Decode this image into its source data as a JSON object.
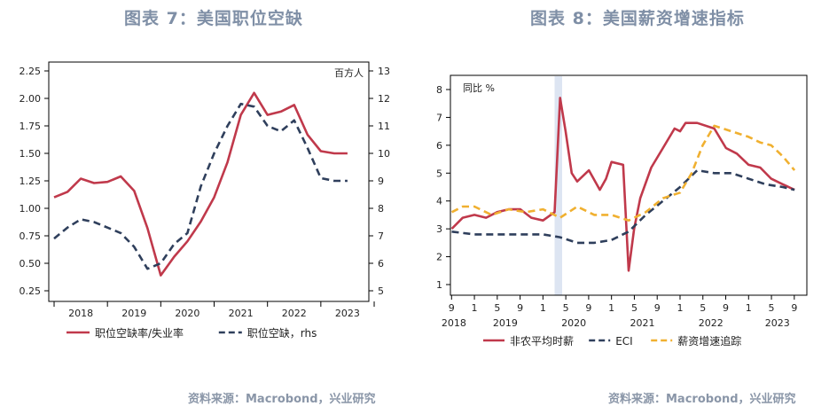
{
  "panels": {
    "left": {
      "title": "图表 7：美国职位空缺",
      "source": "资料来源：Macrobond，兴业研究"
    },
    "right": {
      "title": "图表 8：美国薪资增速指标",
      "source": "资料来源：Macrobond，兴业研究"
    }
  },
  "colors": {
    "red": "#c0394b",
    "navy": "#2f3f5c",
    "gold": "#f0b030",
    "band": "#dde5f2"
  },
  "chart_data": [
    {
      "type": "line",
      "unit_label": "百方人",
      "x_tick_labels": [
        "2018",
        "2019",
        "2020",
        "2021",
        "2022",
        "2023"
      ],
      "y_left": {
        "range": [
          0.25,
          2.25
        ],
        "ticks": [
          "0.25",
          "0.50",
          "0.75",
          "1.00",
          "1.25",
          "1.50",
          "1.75",
          "2.00",
          "2.25"
        ]
      },
      "y_right": {
        "range": [
          5,
          13
        ],
        "ticks": [
          "5",
          "6",
          "7",
          "8",
          "9",
          "10",
          "11",
          "12",
          "13"
        ]
      },
      "series": [
        {
          "name": "职位空缺率/失业率",
          "axis": "left",
          "style": "solid",
          "x": [
            2018.0,
            2018.25,
            2018.5,
            2018.75,
            2019.0,
            2019.25,
            2019.5,
            2019.75,
            2020.0,
            2020.25,
            2020.5,
            2020.75,
            2021.0,
            2021.25,
            2021.5,
            2021.75,
            2022.0,
            2022.25,
            2022.5,
            2022.75,
            2023.0,
            2023.25,
            2023.5
          ],
          "y": [
            1.1,
            1.15,
            1.27,
            1.23,
            1.24,
            1.29,
            1.16,
            0.82,
            0.39,
            0.56,
            0.7,
            0.88,
            1.1,
            1.42,
            1.85,
            2.05,
            1.85,
            1.88,
            1.94,
            1.67,
            1.52,
            1.5,
            1.5
          ]
        },
        {
          "name": "职位空缺，rhs",
          "axis": "right",
          "style": "dashed",
          "x": [
            2018.0,
            2018.25,
            2018.5,
            2018.75,
            2019.0,
            2019.25,
            2019.5,
            2019.75,
            2020.0,
            2020.25,
            2020.5,
            2020.75,
            2021.0,
            2021.25,
            2021.5,
            2021.75,
            2022.0,
            2022.25,
            2022.5,
            2022.75,
            2023.0,
            2023.25,
            2023.5
          ],
          "y": [
            6.9,
            7.3,
            7.6,
            7.5,
            7.3,
            7.1,
            6.6,
            5.8,
            6.0,
            6.7,
            7.1,
            8.8,
            10.0,
            11.0,
            11.8,
            11.7,
            11.0,
            10.8,
            11.2,
            10.2,
            9.1,
            9.0,
            9.0
          ]
        }
      ]
    },
    {
      "type": "line",
      "unit_label": "同比 %",
      "shaded_band": [
        2020.17,
        2020.28
      ],
      "x_month_labels": [
        "9",
        "1",
        "5",
        "9",
        "1",
        "5",
        "9",
        "1",
        "5",
        "9",
        "1",
        "5",
        "9",
        "1",
        "5",
        "9"
      ],
      "x_year_labels": [
        "2018",
        "2019",
        "2020",
        "2021",
        "2022",
        "2023"
      ],
      "y": {
        "range": [
          1,
          8
        ],
        "ticks": [
          "1",
          "2",
          "3",
          "4",
          "5",
          "6",
          "7",
          "8"
        ]
      },
      "series": [
        {
          "name": "非农平均时薪",
          "style": "solid",
          "x": [
            2018.67,
            2018.83,
            2019.0,
            2019.17,
            2019.33,
            2019.5,
            2019.67,
            2019.83,
            2020.0,
            2020.17,
            2020.25,
            2020.33,
            2020.42,
            2020.5,
            2020.67,
            2020.83,
            2020.92,
            2021.0,
            2021.17,
            2021.25,
            2021.33,
            2021.42,
            2021.58,
            2021.75,
            2021.92,
            2022.0,
            2022.08,
            2022.25,
            2022.5,
            2022.67,
            2022.83,
            2023.0,
            2023.17,
            2023.33,
            2023.5,
            2023.67
          ],
          "y": [
            3.0,
            3.4,
            3.5,
            3.4,
            3.6,
            3.7,
            3.7,
            3.4,
            3.3,
            3.6,
            7.7,
            6.5,
            5.0,
            4.7,
            5.1,
            4.4,
            4.8,
            5.4,
            5.3,
            1.5,
            3.0,
            4.1,
            5.2,
            5.9,
            6.6,
            6.5,
            6.8,
            6.8,
            6.6,
            5.9,
            5.7,
            5.3,
            5.2,
            4.8,
            4.6,
            4.4
          ]
        },
        {
          "name": "ECI",
          "style": "dashed",
          "x": [
            2018.67,
            2019.0,
            2019.5,
            2020.0,
            2020.25,
            2020.5,
            2020.75,
            2021.0,
            2021.25,
            2021.5,
            2021.75,
            2022.0,
            2022.25,
            2022.5,
            2022.75,
            2023.0,
            2023.25,
            2023.5,
            2023.67
          ],
          "y": [
            2.9,
            2.8,
            2.8,
            2.8,
            2.7,
            2.5,
            2.5,
            2.6,
            2.9,
            3.5,
            4.0,
            4.5,
            5.1,
            5.0,
            5.0,
            4.8,
            4.6,
            4.5,
            4.4
          ]
        },
        {
          "name": "薪资增速追踪",
          "style": "dashed",
          "x": [
            2018.67,
            2018.83,
            2019.0,
            2019.25,
            2019.5,
            2019.75,
            2020.0,
            2020.25,
            2020.5,
            2020.75,
            2021.0,
            2021.25,
            2021.5,
            2021.75,
            2022.0,
            2022.17,
            2022.33,
            2022.5,
            2022.75,
            2023.0,
            2023.17,
            2023.33,
            2023.5,
            2023.67
          ],
          "y": [
            3.6,
            3.8,
            3.8,
            3.5,
            3.7,
            3.6,
            3.7,
            3.4,
            3.8,
            3.5,
            3.5,
            3.3,
            3.6,
            4.1,
            4.3,
            5.0,
            6.0,
            6.7,
            6.5,
            6.3,
            6.1,
            6.0,
            5.6,
            5.1
          ]
        }
      ]
    }
  ]
}
